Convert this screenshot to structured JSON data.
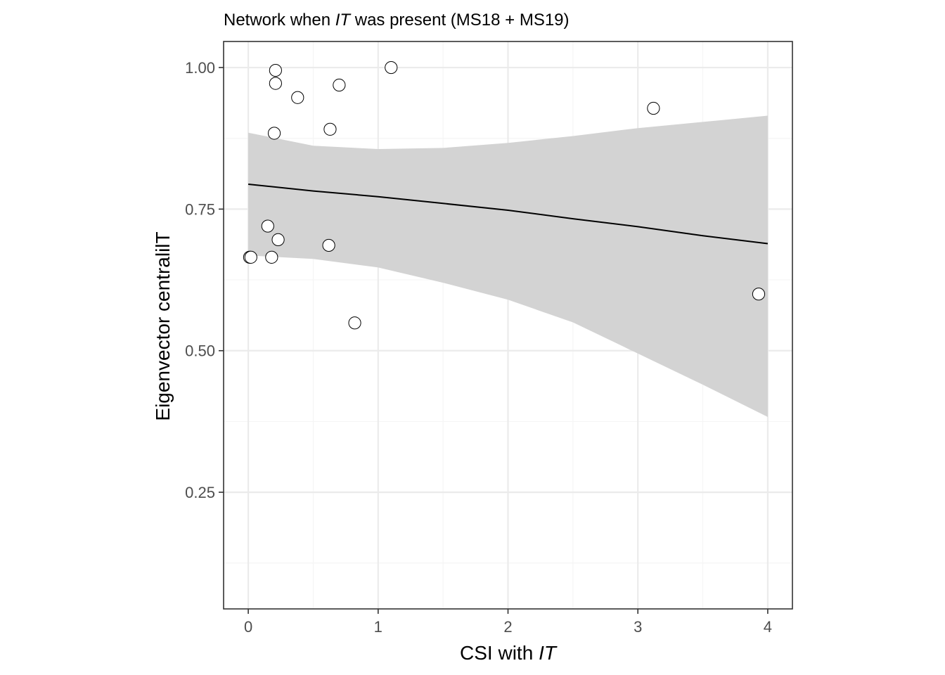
{
  "chart_data": {
    "type": "scatter",
    "title": {
      "before": "Network when ",
      "italic": "IT",
      "after": " was present (MS18 + MS19)"
    },
    "xlabel": {
      "before": "CSI with ",
      "italic": "IT"
    },
    "ylabel": "Eigenvector centralilT",
    "xlim": [
      -0.19,
      4.19
    ],
    "ylim": [
      0.044,
      1.046
    ],
    "x_ticks": [
      {
        "value": 0,
        "label": "0"
      },
      {
        "value": 1,
        "label": "1"
      },
      {
        "value": 2,
        "label": "2"
      },
      {
        "value": 3,
        "label": "3"
      },
      {
        "value": 4,
        "label": "4"
      }
    ],
    "y_ticks": [
      {
        "value": 0.25,
        "label": "0.25"
      },
      {
        "value": 0.5,
        "label": "0.50"
      },
      {
        "value": 0.75,
        "label": "0.75"
      },
      {
        "value": 1.0,
        "label": "1.00"
      }
    ],
    "x_minor_ticks": [
      0.5,
      1.5,
      2.5,
      3.5
    ],
    "y_minor_ticks": [
      0.125,
      0.375,
      0.625,
      0.875
    ],
    "grid": true,
    "points": [
      {
        "x": 0.21,
        "y": 0.995
      },
      {
        "x": 1.1,
        "y": 1.0
      },
      {
        "x": 0.21,
        "y": 0.972
      },
      {
        "x": 0.7,
        "y": 0.969
      },
      {
        "x": 0.38,
        "y": 0.947
      },
      {
        "x": 3.12,
        "y": 0.928
      },
      {
        "x": 0.63,
        "y": 0.891
      },
      {
        "x": 0.2,
        "y": 0.884
      },
      {
        "x": 0.15,
        "y": 0.72
      },
      {
        "x": 0.23,
        "y": 0.696
      },
      {
        "x": 0.62,
        "y": 0.686
      },
      {
        "x": 0.01,
        "y": 0.665
      },
      {
        "x": 0.02,
        "y": 0.665
      },
      {
        "x": 0.18,
        "y": 0.665
      },
      {
        "x": 3.93,
        "y": 0.6
      },
      {
        "x": 0.82,
        "y": 0.549
      }
    ],
    "fit_line": [
      {
        "x": 0.0,
        "y": 0.794
      },
      {
        "x": 0.5,
        "y": 0.782
      },
      {
        "x": 1.0,
        "y": 0.772
      },
      {
        "x": 1.5,
        "y": 0.76
      },
      {
        "x": 2.0,
        "y": 0.748
      },
      {
        "x": 2.5,
        "y": 0.733
      },
      {
        "x": 3.0,
        "y": 0.719
      },
      {
        "x": 3.5,
        "y": 0.703
      },
      {
        "x": 4.0,
        "y": 0.689
      }
    ],
    "confidence_band": [
      {
        "x": 0.0,
        "lower": 0.668,
        "upper": 0.885
      },
      {
        "x": 0.5,
        "lower": 0.662,
        "upper": 0.862
      },
      {
        "x": 1.0,
        "lower": 0.647,
        "upper": 0.856
      },
      {
        "x": 1.5,
        "lower": 0.62,
        "upper": 0.858
      },
      {
        "x": 2.0,
        "lower": 0.59,
        "upper": 0.867
      },
      {
        "x": 2.5,
        "lower": 0.55,
        "upper": 0.879
      },
      {
        "x": 3.0,
        "lower": 0.495,
        "upper": 0.893
      },
      {
        "x": 3.5,
        "lower": 0.44,
        "upper": 0.904
      },
      {
        "x": 4.0,
        "lower": 0.383,
        "upper": 0.915
      }
    ],
    "colors": {
      "band": "#d3d3d3",
      "line": "#000000",
      "point_stroke": "#000000",
      "point_fill": "#ffffff",
      "major_grid": "#ebebeb",
      "minor_grid": "#f5f5f5",
      "panel_border": "#333333",
      "tick_label": "#4d4d4d"
    }
  }
}
